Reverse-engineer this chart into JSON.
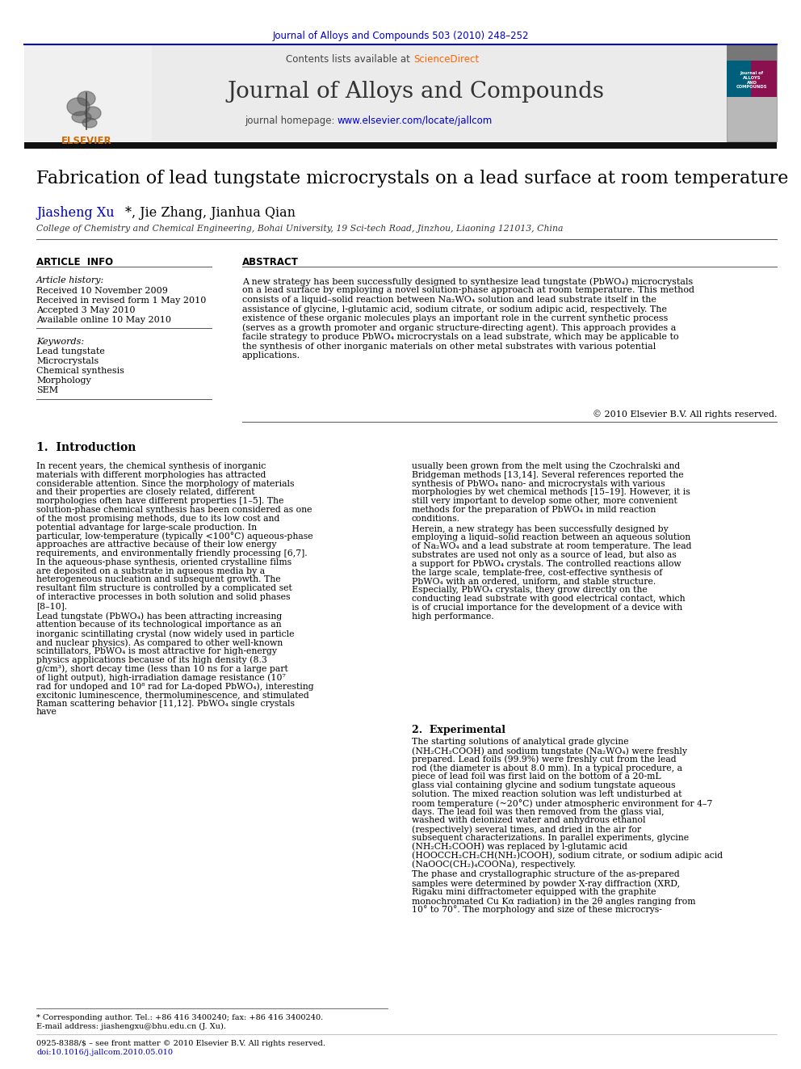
{
  "journal_ref": "Journal of Alloys and Compounds 503 (2010) 248–252",
  "journal_ref_color": "#0000cc",
  "sciencedirect_color": "#ff6600",
  "journal_title": "Journal of Alloys and Compounds",
  "homepage_url": "www.elsevier.com/locate/jallcom",
  "homepage_url_color": "#0000cc",
  "article_title": "Fabrication of lead tungstate microcrystals on a lead surface at room temperature",
  "affiliation": "College of Chemistry and Chemical Engineering, Bohai University, 19 Sci-tech Road, Jinzhou, Liaoning 121013, China",
  "article_info_title": "ARTICLE  INFO",
  "abstract_title": "ABSTRACT",
  "article_history_label": "Article history:",
  "received_1": "Received 10 November 2009",
  "received_revised": "Received in revised form 1 May 2010",
  "accepted": "Accepted 3 May 2010",
  "available": "Available online 10 May 2010",
  "keywords_label": "Keywords:",
  "keywords": [
    "Lead tungstate",
    "Microcrystals",
    "Chemical synthesis",
    "Morphology",
    "SEM"
  ],
  "abstract_text": "A new strategy has been successfully designed to synthesize lead tungstate (PbWO₄) microcrystals on a lead surface by employing a novel solution-phase approach at room temperature. This method consists of a liquid–solid reaction between Na₂WO₄ solution and lead substrate itself in the assistance of glycine, l-glutamic acid, sodium citrate, or sodium adipic acid, respectively. The existence of these organic molecules plays an important role in the current synthetic process (serves as a growth promoter and organic structure-directing agent). This approach provides a facile strategy to produce PbWO₄ microcrystals on a lead substrate, which may be applicable to the synthesis of other inorganic materials on other metal substrates with various potential applications.",
  "copyright": "© 2010 Elsevier B.V. All rights reserved.",
  "section1_title": "1.  Introduction",
  "intro_col1": "In recent years, the chemical synthesis of inorganic materials with different morphologies has attracted considerable attention. Since the morphology of materials and their properties are closely related, different morphologies often have different properties [1–5]. The solution-phase chemical synthesis has been considered as one of the most promising methods, due to its low cost and potential advantage for large-scale production. In particular, low-temperature (typically <100°C) aqueous-phase approaches are attractive because of their low energy requirements, and environmentally friendly processing [6,7]. In the aqueous-phase synthesis, oriented crystalline films are deposited on a substrate in aqueous media by a heterogeneous nucleation and subsequent growth. The resultant film structure is controlled by a complicated set of interactive processes in both solution and solid phases [8–10].|    Lead tungstate (PbWO₄) has been attracting increasing attention because of its technological importance as an inorganic scintillating crystal (now widely used in particle and nuclear physics). As compared to other well-known scintillators, PbWO₄ is most attractive for high-energy physics applications because of its high density (8.3 g/cm³), short decay time (less than 10 ns for a large part of light output), high-irradiation damage resistance (10⁷ rad for undoped and 10⁸ rad for La-doped PbWO₄), interesting excitonic luminescence, thermoluminescence, and stimulated Raman scattering behavior [11,12]. PbWO₄ single crystals have",
  "intro_col2": "usually been grown from the melt using the Czochralski and Bridgeman methods [13,14]. Several references reported the synthesis of PbWO₄ nano- and microcrystals with various morphologies by wet chemical methods [15–19]. However, it is still very important to develop some other, more convenient methods for the preparation of PbWO₄ in mild reaction conditions.|    Herein, a new strategy has been successfully designed by employing a liquid–solid reaction between an aqueous solution of Na₂WO₄ and a lead substrate at room temperature. The lead substrates are used not only as a source of lead, but also as a support for PbWO₄ crystals. The controlled reactions allow the large scale, template-free, cost-effective synthesis of PbWO₄ with an ordered, uniform, and stable structure. Especially, PbWO₄ crystals, they grow directly on the conducting lead substrate with good electrical contact, which is of crucial importance for the development of a device with high performance.",
  "section2_title": "2.  Experimental",
  "exp_text": "The starting solutions of analytical grade glycine (NH₂CH₂COOH) and sodium tungstate (Na₂WO₄) were freshly prepared. Lead foils (99.9%) were freshly cut from the lead rod (the diameter is about 8.0 mm). In a typical procedure, a piece of lead foil was first laid on the bottom of a 20-mL glass vial containing glycine and sodium tungstate aqueous solution. The mixed reaction solution was left undisturbed at room temperature (~20°C) under atmospheric environment for 4–7 days. The lead foil was then removed from the glass vial, washed with deionized water and anhydrous ethanol (respectively) several times, and dried in the air for subsequent characterizations. In parallel experiments, glycine (NH₂CH₂COOH) was replaced by l-glutamic acid (HOOCCH₂CH₂CH(NH₂)COOH), sodium citrate, or sodium adipic acid (NaOOC(CH₂)₄COONa), respectively.|    The phase and crystallographic structure of the as-prepared samples were determined by powder X-ray diffraction (XRD, Rigaku mini diffractometer equipped with the graphite monochromated Cu Kα radiation) in the 2θ angles ranging from 10° to 70°. The morphology and size of these microcrys-",
  "footnote1": "* Corresponding author. Tel.: +86 416 3400240; fax: +86 416 3400240.",
  "footnote2": "E-mail address: jiashengxu@bhu.edu.cn (J. Xu).",
  "footnote3": "0925-8388/$ – see front matter © 2010 Elsevier B.V. All rights reserved.",
  "footnote4": "doi:10.1016/j.jallcom.2010.05.010",
  "bg_color": "#ffffff",
  "text_color": "#000000",
  "dark_bar_color": "#1a1a1a",
  "link_color": "#0000cc",
  "orange_color": "#cc6600"
}
